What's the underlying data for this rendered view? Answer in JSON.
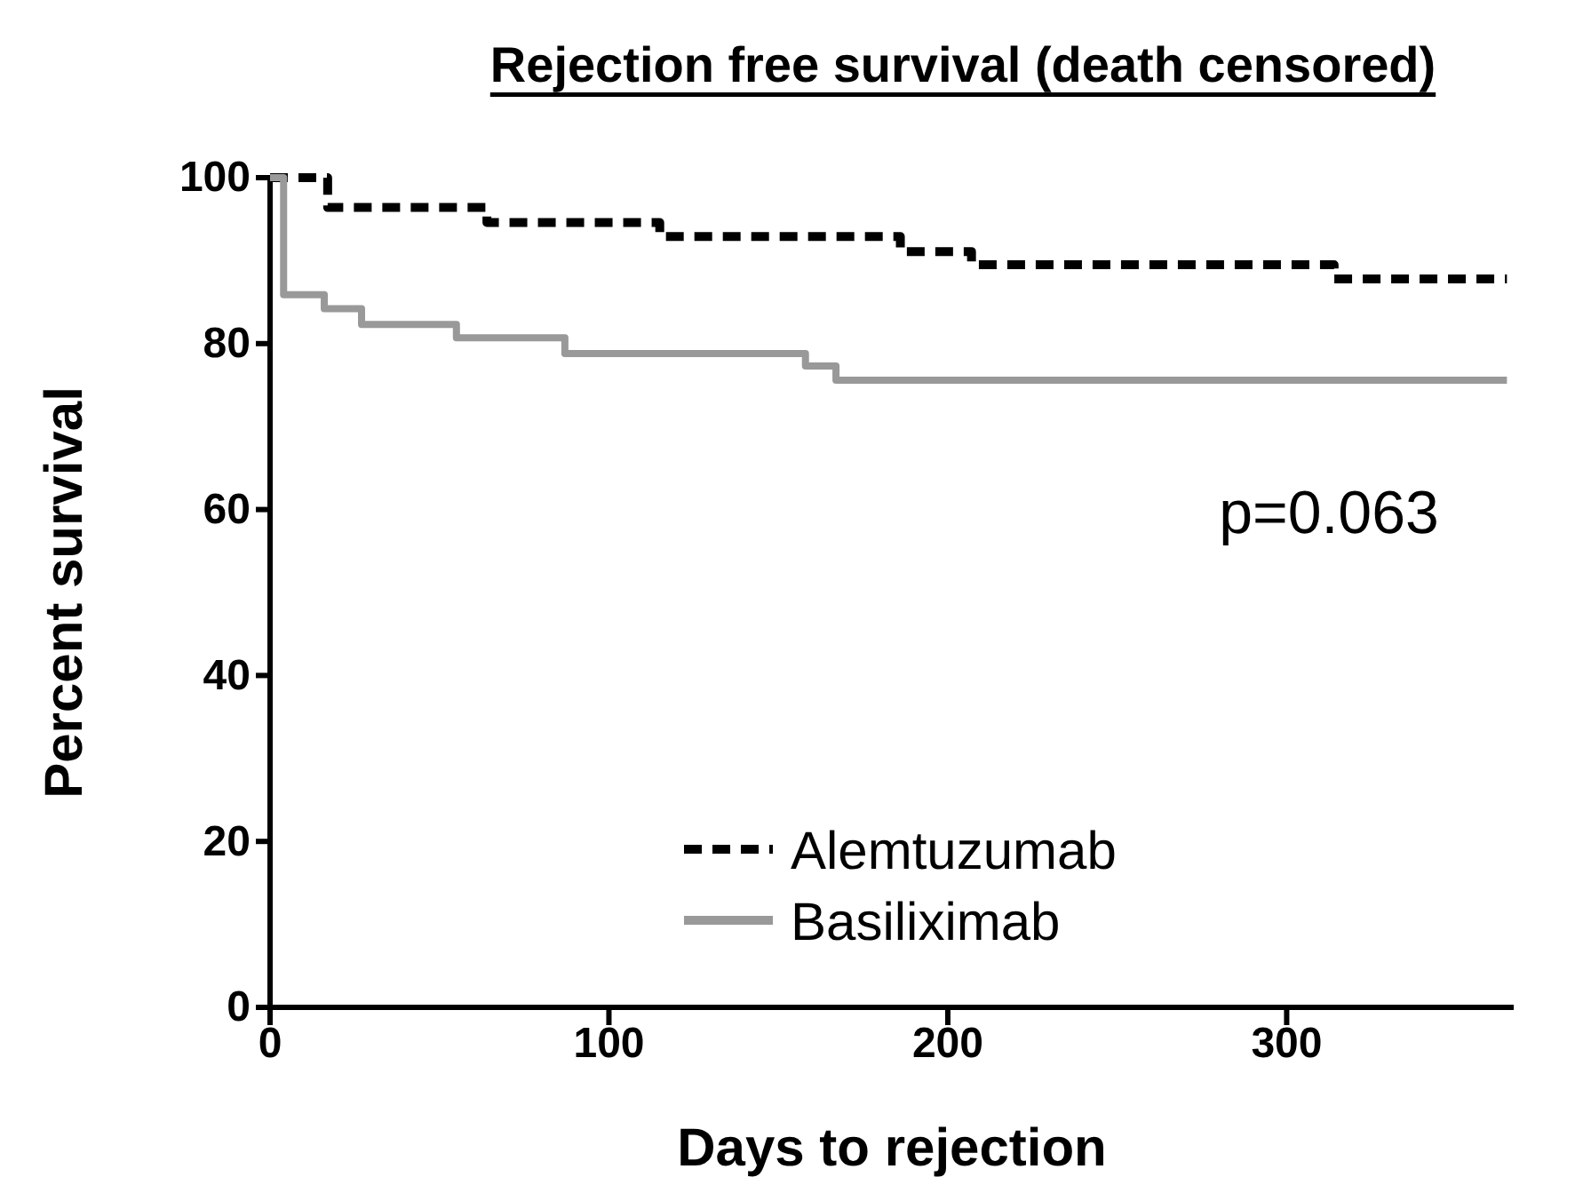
{
  "chart_data": {
    "type": "step",
    "title": "Rejection free survival (death censored)",
    "xlabel": "Days to rejection",
    "ylabel": "Percent survival",
    "xlim": [
      0,
      367
    ],
    "xticks": [
      0,
      100,
      200,
      300
    ],
    "ylim": [
      0,
      100
    ],
    "yticks": [
      0,
      20,
      40,
      60,
      80,
      100
    ],
    "grid": false,
    "legend": "center",
    "marker": "none",
    "annotations": [
      "p=0.063"
    ],
    "series": [
      {
        "name": "Alemtuzumab",
        "color": "#000000",
        "line_style": "dashed",
        "x": [
          0,
          17,
          64,
          115,
          186,
          207,
          314,
          365
        ],
        "values": [
          100,
          96.4,
          94.6,
          92.9,
          91.1,
          89.5,
          87.8,
          87.8
        ]
      },
      {
        "name": "Basiliximab",
        "color": "#999999",
        "line_style": "solid",
        "x": [
          0,
          4,
          16,
          27,
          55,
          87,
          158,
          167,
          365
        ],
        "values": [
          100,
          85.9,
          84.2,
          82.3,
          80.7,
          78.8,
          77.3,
          75.6,
          75.6
        ]
      }
    ]
  }
}
